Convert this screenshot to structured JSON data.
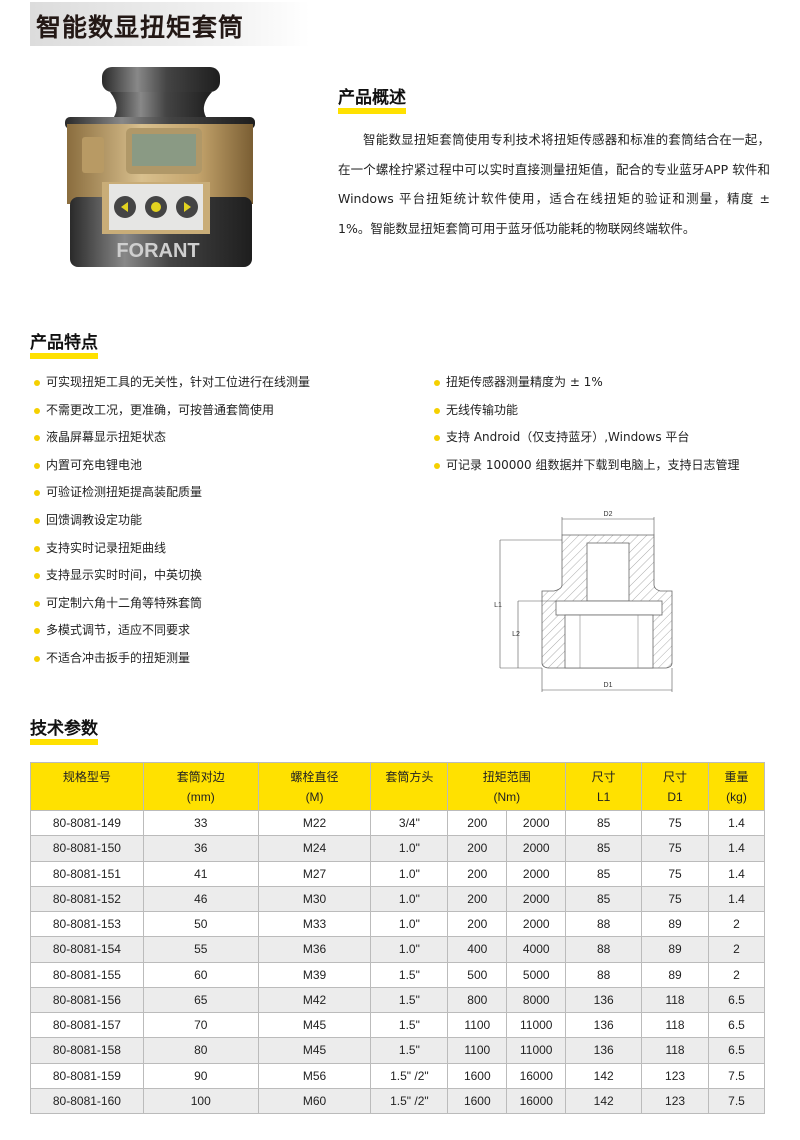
{
  "title": "智能数显扭矩套筒",
  "product_image": {
    "brand_logo": "FORANT",
    "alt": "product-photo"
  },
  "overview": {
    "heading": "产品概述",
    "text": "智能数显扭矩套筒使用专利技术将扭矩传感器和标准的套筒结合在一起，在一个螺栓拧紧过程中可以实时直接测量扭矩值，配合的专业蓝牙APP 软件和 Windows 平台扭矩统计软件使用，适合在线扭矩的验证和测量，精度 ± 1%。智能数显扭矩套筒可用于蓝牙低功能耗的物联网终端软件。"
  },
  "features": {
    "heading": "产品特点",
    "left": [
      "可实现扭矩工具的无关性，针对工位进行在线测量",
      "不需更改工况，更准确，可按普通套筒使用",
      "液晶屏幕显示扭矩状态",
      "内置可充电锂电池",
      "可验证检测扭矩提高装配质量",
      "回馈调教设定功能",
      "支持实时记录扭矩曲线",
      "支持显示实时时间，中英切换",
      "可定制六角十二角等特殊套筒",
      "多模式调节，适应不同要求",
      "不适合冲击扳手的扭矩测量"
    ],
    "right": [
      "扭矩传感器测量精度为 ± 1%",
      "无线传输功能",
      "支持 Android（仅支持蓝牙）,Windows 平台",
      "可记录 100000 组数据并下载到电脑上，支持日志管理"
    ]
  },
  "diagram": {
    "labels": {
      "d2": "D2",
      "l1": "L1",
      "l2": "L2",
      "d1": "D1"
    }
  },
  "specs": {
    "heading": "技术参数",
    "headers": [
      [
        "规格型号",
        ""
      ],
      [
        "套筒对边",
        "(mm)"
      ],
      [
        "螺栓直径",
        "(M)"
      ],
      [
        "套筒方头",
        ""
      ],
      [
        "扭矩范围",
        "(Nm)"
      ],
      [
        "尺寸",
        "L1"
      ],
      [
        "尺寸",
        "D1"
      ],
      [
        "重量",
        "(kg)"
      ]
    ],
    "rows": [
      [
        "80-8081-149",
        "33",
        "M22",
        "3/4\"",
        "200",
        "2000",
        "85",
        "75",
        "1.4"
      ],
      [
        "80-8081-150",
        "36",
        "M24",
        "1.0\"",
        "200",
        "2000",
        "85",
        "75",
        "1.4"
      ],
      [
        "80-8081-151",
        "41",
        "M27",
        "1.0\"",
        "200",
        "2000",
        "85",
        "75",
        "1.4"
      ],
      [
        "80-8081-152",
        "46",
        "M30",
        "1.0\"",
        "200",
        "2000",
        "85",
        "75",
        "1.4"
      ],
      [
        "80-8081-153",
        "50",
        "M33",
        "1.0\"",
        "200",
        "2000",
        "88",
        "89",
        "2"
      ],
      [
        "80-8081-154",
        "55",
        "M36",
        "1.0\"",
        "400",
        "4000",
        "88",
        "89",
        "2"
      ],
      [
        "80-8081-155",
        "60",
        "M39",
        "1.5\"",
        "500",
        "5000",
        "88",
        "89",
        "2"
      ],
      [
        "80-8081-156",
        "65",
        "M42",
        "1.5\"",
        "800",
        "8000",
        "136",
        "118",
        "6.5"
      ],
      [
        "80-8081-157",
        "70",
        "M45",
        "1.5\"",
        "1100",
        "11000",
        "136",
        "118",
        "6.5"
      ],
      [
        "80-8081-158",
        "80",
        "M45",
        "1.5\"",
        "1100",
        "11000",
        "136",
        "118",
        "6.5"
      ],
      [
        "80-8081-159",
        "90",
        "M56",
        "1.5\" /2\"",
        "1600",
        "16000",
        "142",
        "123",
        "7.5"
      ],
      [
        "80-8081-160",
        "100",
        "M60",
        "1.5\" /2\"",
        "1600",
        "16000",
        "142",
        "123",
        "7.5"
      ]
    ]
  },
  "colors": {
    "accent": "#ffe100",
    "header_bg": "#ffe100",
    "alt_row": "#ececec"
  }
}
